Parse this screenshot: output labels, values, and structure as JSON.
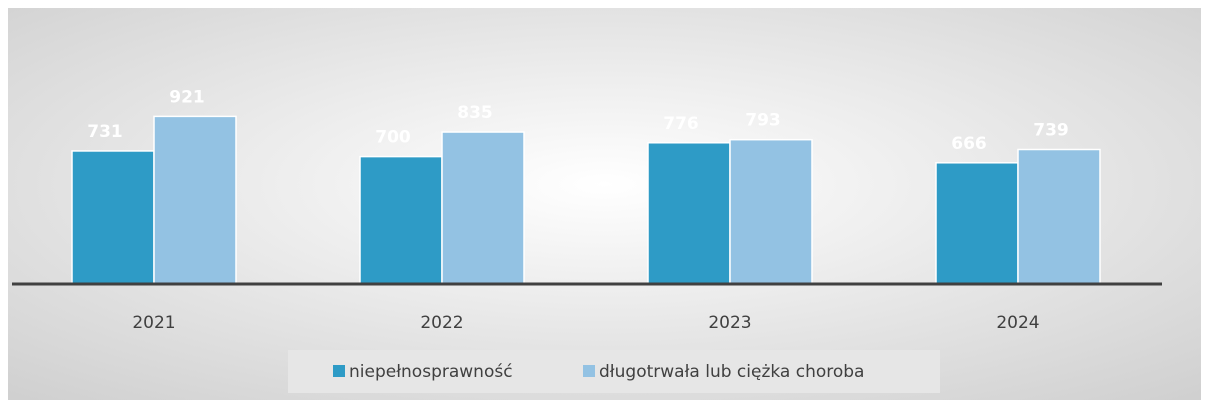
{
  "chart_data": {
    "type": "bar",
    "categories": [
      "2021",
      "2022",
      "2023",
      "2024"
    ],
    "series": [
      {
        "name": "niepełnosprawność",
        "color": "#2e9bc6",
        "values": [
          731,
          700,
          776,
          666
        ]
      },
      {
        "name": "długotrwała lub ciężka choroba",
        "color": "#93c2e3",
        "values": [
          921,
          835,
          793,
          739
        ]
      }
    ],
    "ylim": [
      0,
      1000
    ],
    "legend": "bottom"
  }
}
